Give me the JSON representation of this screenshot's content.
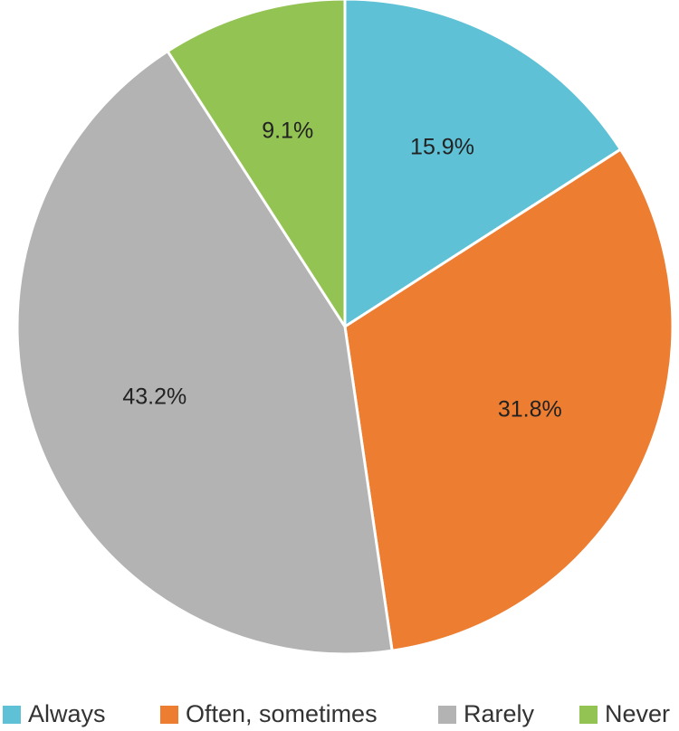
{
  "chart_data": {
    "type": "pie",
    "categories": [
      "Always",
      "Often, sometimes",
      "Rarely",
      "Never"
    ],
    "values": [
      15.9,
      31.8,
      43.2,
      9.1
    ],
    "value_labels": [
      "15.9%",
      "31.8%",
      "43.2%",
      "9.1%"
    ],
    "colors": [
      "#5fc1d6",
      "#ed7d31",
      "#b3b3b3",
      "#92c353"
    ],
    "legend": "bottom"
  }
}
